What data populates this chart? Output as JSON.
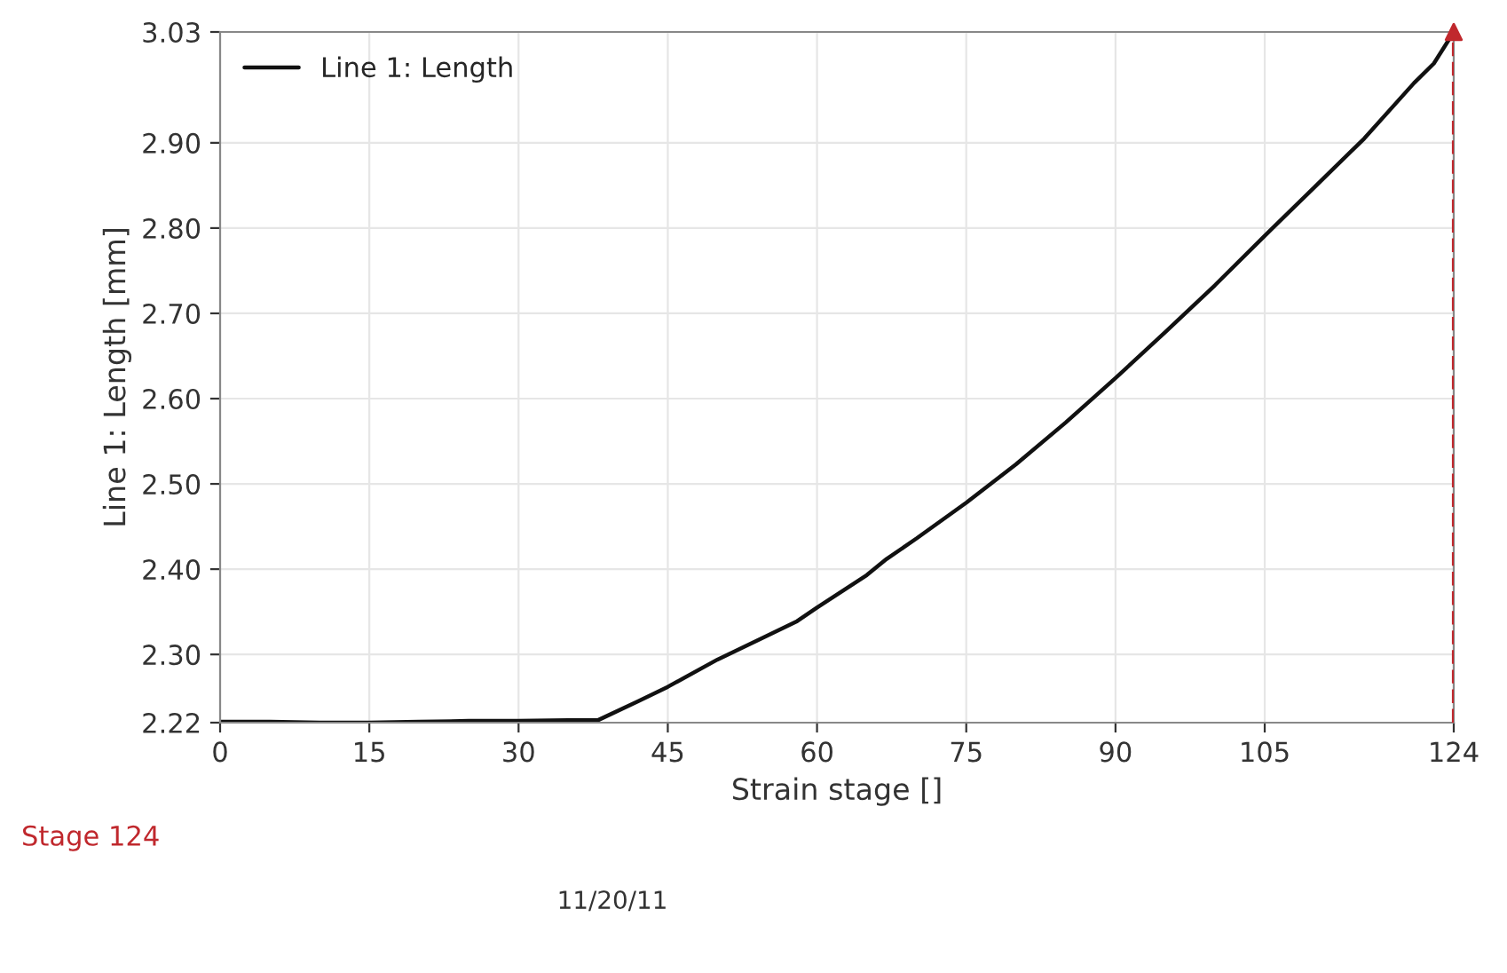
{
  "chart_data": {
    "type": "line",
    "xlabel": "Strain stage []",
    "ylabel": "Line 1: Length [mm]",
    "series": [
      {
        "name": "Line 1: Length",
        "color": "#111111",
        "x": [
          0,
          5,
          10,
          15,
          20,
          25,
          30,
          35,
          38,
          42,
          45,
          50,
          55,
          58,
          60,
          65,
          67,
          70,
          75,
          80,
          85,
          90,
          95,
          100,
          105,
          110,
          115,
          120,
          122,
          124
        ],
        "values": [
          2.221,
          2.221,
          2.22,
          2.22,
          2.221,
          2.222,
          2.222,
          2.223,
          2.223,
          2.245,
          2.262,
          2.294,
          2.322,
          2.339,
          2.355,
          2.393,
          2.412,
          2.436,
          2.478,
          2.523,
          2.572,
          2.624,
          2.678,
          2.733,
          2.791,
          2.848,
          2.905,
          2.97,
          2.993,
          3.03
        ]
      },
      {
        "type": "scatter",
        "color": "#c0282d",
        "marker": "triangle",
        "x": [
          124
        ],
        "values": [
          3.03
        ]
      }
    ],
    "ref_lines": [
      {
        "axis": "x",
        "value": 124,
        "color": "#c0282d",
        "line_style": "dashed"
      }
    ],
    "xlim": [
      0,
      124
    ],
    "xticks": [
      0,
      15,
      30,
      45,
      60,
      75,
      90,
      105,
      124
    ],
    "ylim": [
      2.22,
      3.03
    ],
    "yticks": [
      {
        "value": 2.22,
        "label": "2.22"
      },
      {
        "value": 2.3,
        "label": "2.30"
      },
      {
        "value": 2.4,
        "label": "2.40"
      },
      {
        "value": 2.5,
        "label": "2.50"
      },
      {
        "value": 2.6,
        "label": "2.60"
      },
      {
        "value": 2.7,
        "label": "2.70"
      },
      {
        "value": 2.8,
        "label": "2.80"
      },
      {
        "value": 2.9,
        "label": "2.90"
      },
      {
        "value": 3.03,
        "label": "3.03"
      }
    ],
    "grid": true,
    "legend": "top left",
    "marker": "none",
    "line_style": "solid",
    "annotations": [
      "Stage 124",
      "11/20/11"
    ]
  }
}
